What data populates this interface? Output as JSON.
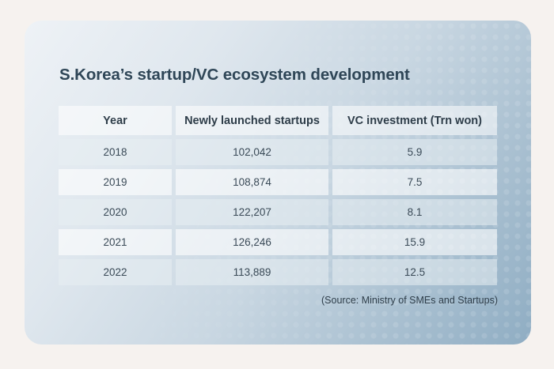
{
  "title": "S.Korea’s startup/VC ecosystem development",
  "headers": [
    "Year",
    "Newly launched startups",
    "VC investment (Trn won)"
  ],
  "rows": [
    [
      "2018",
      "102,042",
      "5.9"
    ],
    [
      "2019",
      "108,874",
      "7.5"
    ],
    [
      "2020",
      "122,207",
      "8.1"
    ],
    [
      "2021",
      "126,246",
      "15.9"
    ],
    [
      "2022",
      "113,889",
      "12.5"
    ]
  ],
  "source": "(Source: Ministry of SMEs and Startups)"
}
